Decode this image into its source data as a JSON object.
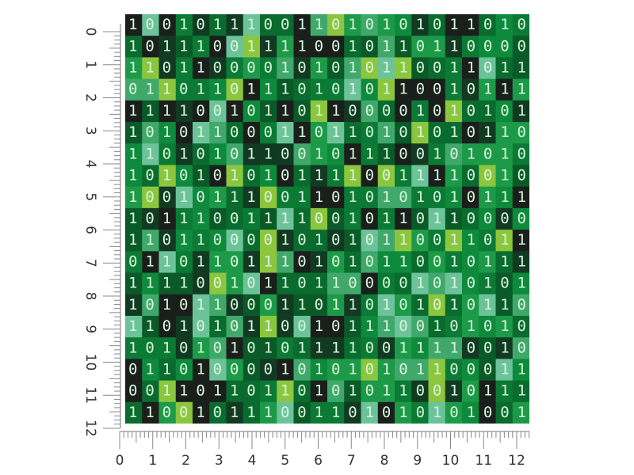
{
  "pattern": {
    "rows": [
      "100101110011010101011010",
      "101110011110010110110000",
      "110110000101010110011011",
      "011011011101010110010111",
      "111100101101100001010101",
      "101011000110110101010110",
      "110101011001011100101010",
      "101010101011110011110010",
      "100101110011010101010111",
      "101110011110010110110000",
      "110110000101010110011011",
      "011011011101010110010111",
      "111100101101100001010101",
      "101011000110110101010110",
      "110101011001011100101010",
      "101010101011110011110010",
      "011010000101010101100011",
      "001101101101010110010111",
      "110010111001101010101001"
    ]
  },
  "ruler": {
    "left": [
      0,
      1,
      2,
      3,
      4,
      5,
      6,
      7,
      8,
      9,
      10,
      11,
      12
    ],
    "bottom": [
      0,
      1,
      2,
      3,
      4,
      5,
      6,
      7,
      8,
      9,
      10,
      11,
      12
    ]
  }
}
